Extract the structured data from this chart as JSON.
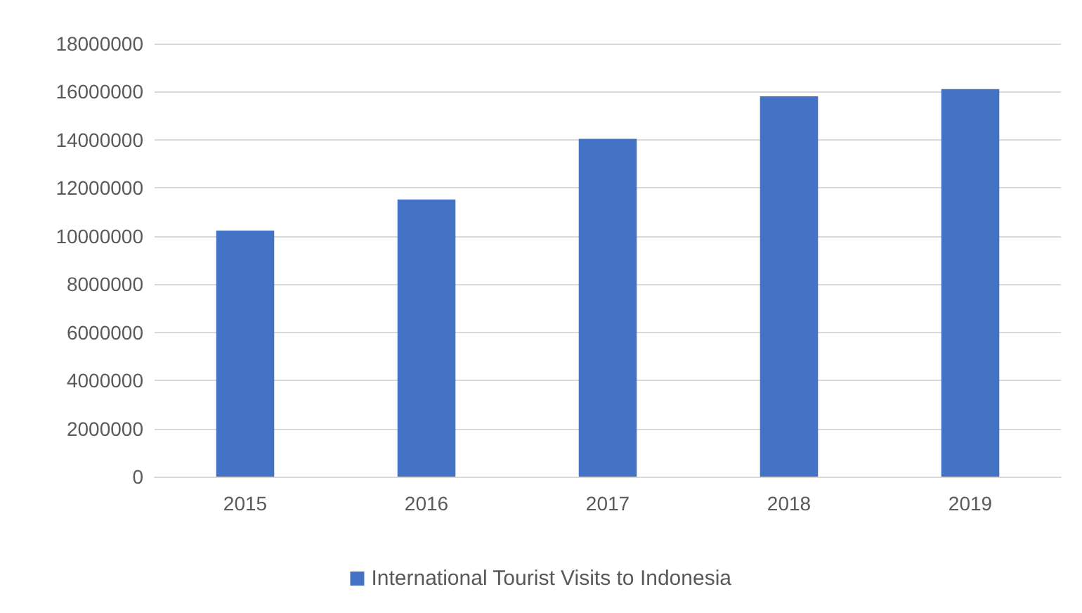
{
  "chart_data": {
    "type": "bar",
    "categories": [
      "2015",
      "2016",
      "2017",
      "2018",
      "2019"
    ],
    "series": [
      {
        "name": "International Tourist Visits to Indonesia",
        "color": "#4472c4",
        "values": [
          10230000,
          11520000,
          14040000,
          15810000,
          16110000
        ]
      }
    ],
    "ylim": [
      0,
      18000000
    ],
    "yticks": [
      0,
      2000000,
      4000000,
      6000000,
      8000000,
      10000000,
      12000000,
      14000000,
      16000000,
      18000000
    ],
    "grid": "y",
    "legend": "bottom"
  }
}
